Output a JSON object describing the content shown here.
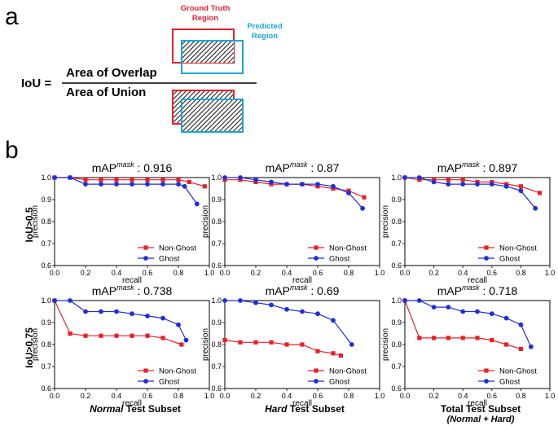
{
  "panel_a": {
    "label": "a",
    "gt_label_line1": "Ground Truth",
    "gt_label_line2": "Region",
    "pred_label_line1": "Predicted",
    "pred_label_line2": "Region",
    "iou_label": "IoU =",
    "numerator": "Area of Overlap",
    "denominator": "Area of Union",
    "colors": {
      "gt": "#e8202a",
      "pred": "#1aa7d6"
    }
  },
  "panel_b": {
    "label": "b",
    "row_labels": [
      "IoU>0.5",
      "IoU>0.75"
    ],
    "col_labels": [
      {
        "italic": "Normal",
        "rest": " Test Subset",
        "sub": ""
      },
      {
        "italic": "Hard",
        "rest": " Test Subset",
        "sub": ""
      },
      {
        "italic": "",
        "rest": "Total Test Subset",
        "sub": "(Normal + Hard)"
      }
    ]
  },
  "chart_data": [
    {
      "type": "line",
      "title": "mAP^mask : 0.916",
      "title_base": "mAP",
      "title_sup": "mask",
      "title_value": " : 0.916",
      "xlabel": "recall",
      "ylabel": "precision",
      "xlim": [
        0,
        1
      ],
      "ylim": [
        0.6,
        1.0
      ],
      "xticks": [
        "0.0",
        "0.2",
        "0.4",
        "0.6",
        "0.8",
        "1.0"
      ],
      "yticks": [
        "0.6",
        "0.7",
        "0.8",
        "0.9",
        "1.0"
      ],
      "legend": "bottom-right",
      "series": [
        {
          "name": "Non-Ghost",
          "color": "#e8202a",
          "marker": "square",
          "x": [
            0.0,
            0.1,
            0.2,
            0.3,
            0.4,
            0.5,
            0.6,
            0.7,
            0.8,
            0.87,
            0.97
          ],
          "y": [
            1.0,
            1.0,
            0.99,
            0.99,
            0.99,
            0.99,
            0.99,
            0.99,
            0.99,
            0.98,
            0.96
          ]
        },
        {
          "name": "Ghost",
          "color": "#1f2fd6",
          "marker": "circle",
          "x": [
            0.0,
            0.1,
            0.2,
            0.3,
            0.4,
            0.5,
            0.6,
            0.7,
            0.8,
            0.84,
            0.92
          ],
          "y": [
            1.0,
            1.0,
            0.97,
            0.97,
            0.97,
            0.97,
            0.97,
            0.97,
            0.97,
            0.96,
            0.88
          ]
        }
      ]
    },
    {
      "type": "line",
      "title": "mAP^mask : 0.87",
      "title_base": "mAP",
      "title_sup": "mask",
      "title_value": " : 0.87",
      "xlabel": "recall",
      "ylabel": "precision",
      "xlim": [
        0,
        1
      ],
      "ylim": [
        0.6,
        1.0
      ],
      "xticks": [
        "0.0",
        "0.2",
        "0.4",
        "0.6",
        "0.8",
        "1.0"
      ],
      "yticks": [
        "0.6",
        "0.7",
        "0.8",
        "0.9",
        "1.0"
      ],
      "legend": "bottom-right",
      "series": [
        {
          "name": "Non-Ghost",
          "color": "#e8202a",
          "marker": "square",
          "x": [
            0.0,
            0.1,
            0.2,
            0.3,
            0.4,
            0.5,
            0.6,
            0.7,
            0.8,
            0.9
          ],
          "y": [
            0.99,
            0.99,
            0.98,
            0.97,
            0.97,
            0.97,
            0.96,
            0.95,
            0.94,
            0.91
          ]
        },
        {
          "name": "Ghost",
          "color": "#1f2fd6",
          "marker": "circle",
          "x": [
            0.0,
            0.1,
            0.2,
            0.3,
            0.4,
            0.5,
            0.6,
            0.7,
            0.8,
            0.89
          ],
          "y": [
            1.0,
            1.0,
            0.99,
            0.98,
            0.97,
            0.97,
            0.97,
            0.96,
            0.93,
            0.86
          ]
        }
      ]
    },
    {
      "type": "line",
      "title": "mAP^mask : 0.897",
      "title_base": "mAP",
      "title_sup": "mask",
      "title_value": " : 0.897",
      "xlabel": "recall",
      "ylabel": "precision",
      "xlim": [
        0,
        1
      ],
      "ylim": [
        0.6,
        1.0
      ],
      "xticks": [
        "0.0",
        "0.2",
        "0.4",
        "0.6",
        "0.8",
        "1.0"
      ],
      "yticks": [
        "0.6",
        "0.7",
        "0.8",
        "0.9",
        "1.0"
      ],
      "legend": "bottom-right",
      "series": [
        {
          "name": "Non-Ghost",
          "color": "#e8202a",
          "marker": "square",
          "x": [
            0.0,
            0.1,
            0.2,
            0.3,
            0.4,
            0.5,
            0.6,
            0.7,
            0.8,
            0.93
          ],
          "y": [
            1.0,
            0.99,
            0.99,
            0.99,
            0.99,
            0.98,
            0.98,
            0.97,
            0.96,
            0.93
          ]
        },
        {
          "name": "Ghost",
          "color": "#1f2fd6",
          "marker": "circle",
          "x": [
            0.0,
            0.1,
            0.2,
            0.3,
            0.4,
            0.5,
            0.6,
            0.7,
            0.8,
            0.9
          ],
          "y": [
            1.0,
            1.0,
            0.98,
            0.97,
            0.97,
            0.97,
            0.97,
            0.96,
            0.94,
            0.86
          ]
        }
      ]
    },
    {
      "type": "line",
      "title": "mAP^mask : 0.738",
      "title_base": "mAP",
      "title_sup": "mask",
      "title_value": " : 0.738",
      "xlabel": "recall",
      "ylabel": "precision",
      "xlim": [
        0,
        1
      ],
      "ylim": [
        0.6,
        1.0
      ],
      "xticks": [
        "0.0",
        "0.2",
        "0.4",
        "0.6",
        "0.8",
        "1.0"
      ],
      "yticks": [
        "0.6",
        "0.7",
        "0.8",
        "0.9",
        "1.0"
      ],
      "legend": "bottom-right",
      "series": [
        {
          "name": "Non-Ghost",
          "color": "#e8202a",
          "marker": "square",
          "x": [
            0.0,
            0.1,
            0.2,
            0.3,
            0.4,
            0.5,
            0.6,
            0.7,
            0.82
          ],
          "y": [
            1.0,
            0.85,
            0.84,
            0.84,
            0.84,
            0.84,
            0.84,
            0.83,
            0.8
          ]
        },
        {
          "name": "Ghost",
          "color": "#1f2fd6",
          "marker": "circle",
          "x": [
            0.0,
            0.1,
            0.2,
            0.3,
            0.4,
            0.5,
            0.6,
            0.7,
            0.8,
            0.85
          ],
          "y": [
            1.0,
            1.0,
            0.95,
            0.95,
            0.95,
            0.94,
            0.93,
            0.92,
            0.89,
            0.82
          ]
        }
      ]
    },
    {
      "type": "line",
      "title": "mAP^mask : 0.69",
      "title_base": "mAP",
      "title_sup": "mask",
      "title_value": " : 0.69",
      "xlabel": "recall",
      "ylabel": "precision",
      "xlim": [
        0,
        1
      ],
      "ylim": [
        0.6,
        1.0
      ],
      "xticks": [
        "0.0",
        "0.2",
        "0.4",
        "0.6",
        "0.8",
        "1.0"
      ],
      "yticks": [
        "0.6",
        "0.7",
        "0.8",
        "0.9",
        "1.0"
      ],
      "legend": "bottom-right",
      "series": [
        {
          "name": "Non-Ghost",
          "color": "#e8202a",
          "marker": "square",
          "x": [
            0.0,
            0.1,
            0.2,
            0.3,
            0.4,
            0.5,
            0.6,
            0.7,
            0.75
          ],
          "y": [
            0.82,
            0.81,
            0.81,
            0.81,
            0.8,
            0.8,
            0.77,
            0.76,
            0.75
          ]
        },
        {
          "name": "Ghost",
          "color": "#1f2fd6",
          "marker": "circle",
          "x": [
            0.0,
            0.1,
            0.2,
            0.3,
            0.4,
            0.5,
            0.6,
            0.7,
            0.82
          ],
          "y": [
            1.0,
            1.0,
            0.99,
            0.98,
            0.96,
            0.95,
            0.94,
            0.91,
            0.8
          ]
        }
      ]
    },
    {
      "type": "line",
      "title": "mAP^mask : 0.718",
      "title_base": "mAP",
      "title_sup": "mask",
      "title_value": " : 0.718",
      "xlabel": "recall",
      "ylabel": "precision",
      "xlim": [
        0,
        1
      ],
      "ylim": [
        0.6,
        1.0
      ],
      "xticks": [
        "0.0",
        "0.2",
        "0.4",
        "0.6",
        "0.8",
        "1.0"
      ],
      "yticks": [
        "0.6",
        "0.7",
        "0.8",
        "0.9",
        "1.0"
      ],
      "legend": "bottom-right",
      "series": [
        {
          "name": "Non-Ghost",
          "color": "#e8202a",
          "marker": "square",
          "x": [
            0.0,
            0.1,
            0.2,
            0.3,
            0.4,
            0.5,
            0.6,
            0.7,
            0.8
          ],
          "y": [
            1.0,
            0.83,
            0.83,
            0.83,
            0.83,
            0.83,
            0.82,
            0.8,
            0.78
          ]
        },
        {
          "name": "Ghost",
          "color": "#1f2fd6",
          "marker": "circle",
          "x": [
            0.0,
            0.1,
            0.2,
            0.3,
            0.4,
            0.5,
            0.6,
            0.7,
            0.8,
            0.87
          ],
          "y": [
            1.0,
            1.0,
            0.97,
            0.97,
            0.95,
            0.95,
            0.94,
            0.92,
            0.89,
            0.79
          ]
        }
      ]
    }
  ]
}
